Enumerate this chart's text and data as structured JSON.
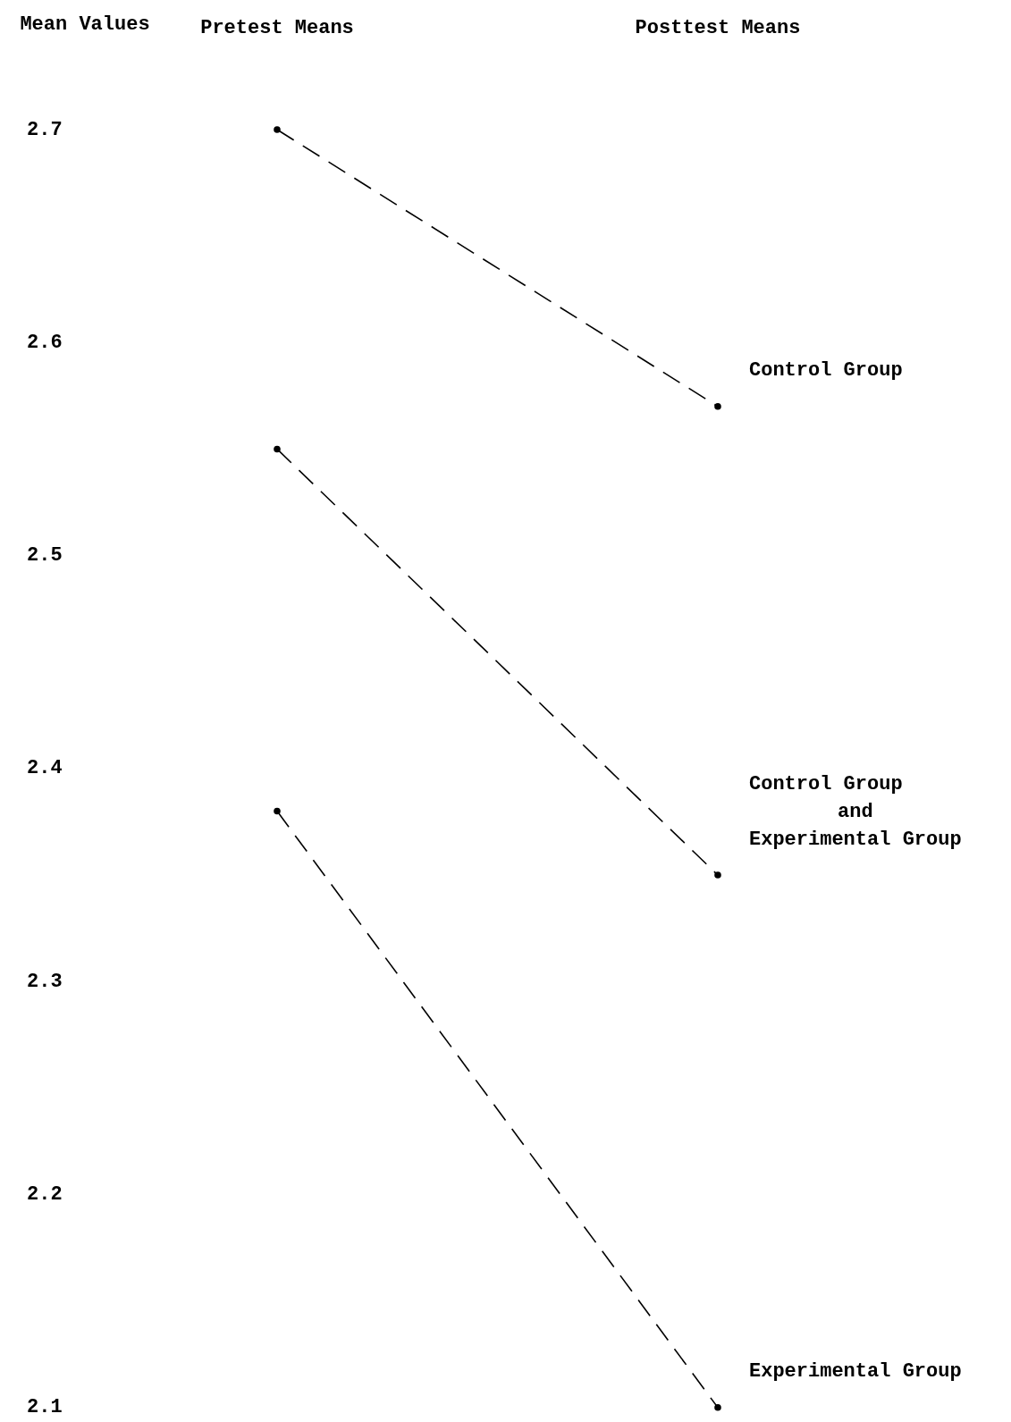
{
  "chart_data": {
    "type": "line",
    "ylabel": "Mean Values",
    "categories": [
      "Pretest Means",
      "Posttest Means"
    ],
    "series": [
      {
        "name": "Control Group",
        "color": "#000000",
        "values": [
          2.7,
          2.57
        ]
      },
      {
        "name": "Control Group\nand\nExperimental Group",
        "color": "#000000",
        "values": [
          2.55,
          2.35
        ]
      },
      {
        "name": "Experimental Group",
        "color": "#000000",
        "values": [
          2.38,
          2.1
        ]
      }
    ],
    "ylim": [
      2.1,
      2.7
    ],
    "yticks": [
      2.1,
      2.2,
      2.3,
      2.4,
      2.5,
      2.6,
      2.7
    ],
    "grid": false,
    "legend": false,
    "marker": "circle",
    "line_style": "dashed"
  }
}
